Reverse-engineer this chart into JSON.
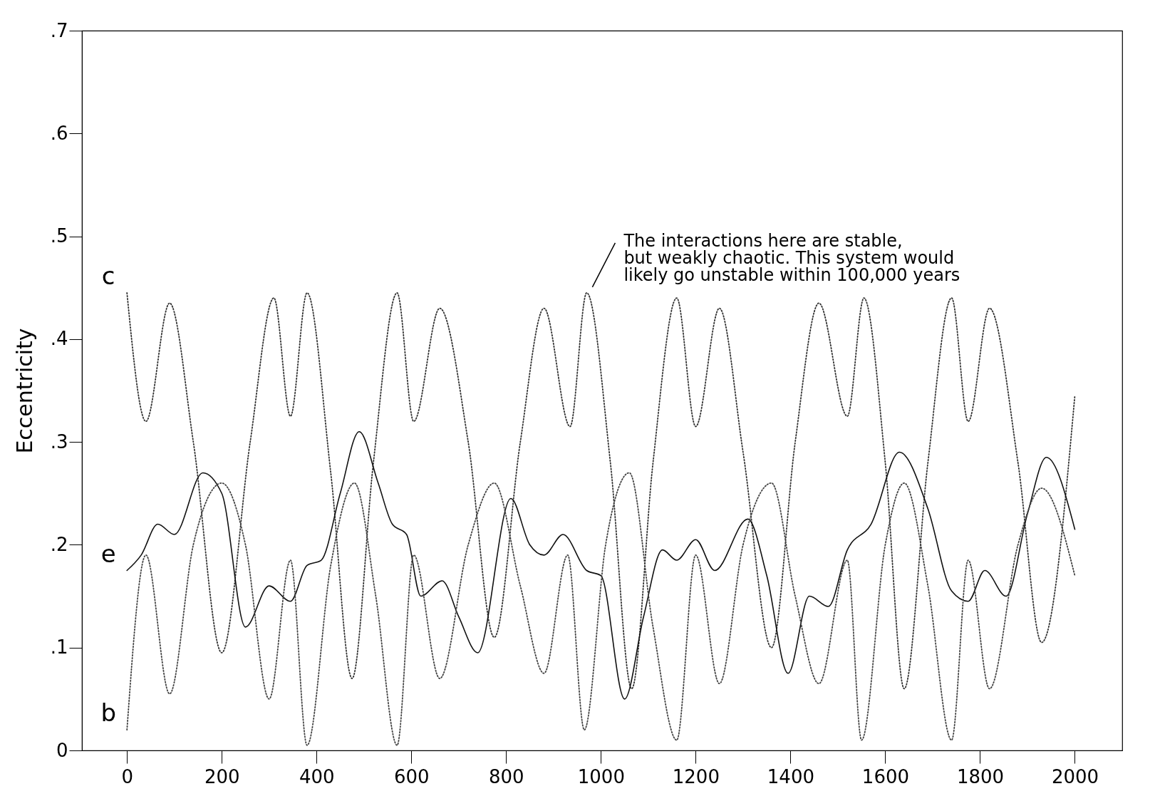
{
  "chart_data": {
    "type": "line",
    "ylabel": "Eccentricity",
    "xlim": [
      -95,
      2100
    ],
    "ylim": [
      0,
      0.7
    ],
    "xticks": [
      0,
      200,
      400,
      600,
      800,
      1000,
      1200,
      1400,
      1600,
      1800,
      2000
    ],
    "yticks": [
      0,
      {
        "value": 0.1,
        "label": ".1"
      },
      {
        "value": 0.2,
        "label": ".2"
      },
      {
        "value": 0.3,
        "label": ".3"
      },
      {
        "value": 0.4,
        "label": ".4"
      },
      {
        "value": 0.5,
        "label": ".5"
      },
      {
        "value": 0.6,
        "label": ".6"
      },
      {
        "value": 0.7,
        "label": ".7"
      }
    ],
    "grid": false,
    "marker": "none",
    "series": [
      {
        "name": "c",
        "color": "#333333",
        "line_style": "dotted",
        "x": [
          0,
          40,
          90,
          140,
          200,
          260,
          310,
          345,
          380,
          430,
          475,
          520,
          570,
          605,
          660,
          720,
          775,
          830,
          880,
          935,
          970,
          1020,
          1065,
          1110,
          1160,
          1200,
          1250,
          1300,
          1360,
          1410,
          1460,
          1520,
          1555,
          1600,
          1640,
          1690,
          1740,
          1775,
          1820,
          1880,
          1930,
          2000
        ],
        "values": [
          0.445,
          0.32,
          0.435,
          0.3,
          0.095,
          0.3,
          0.44,
          0.325,
          0.445,
          0.27,
          0.07,
          0.28,
          0.445,
          0.32,
          0.43,
          0.3,
          0.11,
          0.3,
          0.43,
          0.315,
          0.445,
          0.28,
          0.06,
          0.28,
          0.44,
          0.315,
          0.43,
          0.29,
          0.1,
          0.3,
          0.435,
          0.325,
          0.44,
          0.28,
          0.06,
          0.28,
          0.44,
          0.32,
          0.43,
          0.28,
          0.105,
          0.345
        ]
      },
      {
        "name": "e",
        "color": "#111111",
        "line_style": "solid",
        "x": [
          0,
          30,
          65,
          100,
          160,
          200,
          250,
          300,
          345,
          380,
          410,
          450,
          490,
          530,
          560,
          590,
          620,
          665,
          700,
          740,
          810,
          850,
          880,
          920,
          970,
          1000,
          1050,
          1090,
          1130,
          1160,
          1200,
          1240,
          1310,
          1350,
          1395,
          1440,
          1480,
          1520,
          1570,
          1630,
          1690,
          1740,
          1775,
          1810,
          1855,
          1900,
          1940,
          2000
        ],
        "values": [
          0.175,
          0.19,
          0.22,
          0.21,
          0.27,
          0.25,
          0.12,
          0.16,
          0.145,
          0.18,
          0.185,
          0.25,
          0.31,
          0.26,
          0.22,
          0.21,
          0.15,
          0.165,
          0.13,
          0.095,
          0.245,
          0.2,
          0.19,
          0.21,
          0.175,
          0.17,
          0.05,
          0.13,
          0.195,
          0.185,
          0.205,
          0.175,
          0.225,
          0.17,
          0.075,
          0.15,
          0.14,
          0.195,
          0.22,
          0.29,
          0.235,
          0.155,
          0.145,
          0.175,
          0.15,
          0.23,
          0.285,
          0.215
        ]
      },
      {
        "name": "b",
        "color": "#444444",
        "line_style": "dotted",
        "x": [
          0,
          40,
          90,
          140,
          200,
          250,
          300,
          345,
          380,
          430,
          480,
          525,
          570,
          605,
          660,
          720,
          775,
          830,
          880,
          930,
          965,
          1010,
          1060,
          1110,
          1160,
          1200,
          1250,
          1300,
          1360,
          1410,
          1460,
          1520,
          1550,
          1600,
          1640,
          1690,
          1740,
          1775,
          1820,
          1880,
          1930,
          2000
        ],
        "values": [
          0.02,
          0.19,
          0.055,
          0.2,
          0.26,
          0.2,
          0.05,
          0.185,
          0.005,
          0.18,
          0.26,
          0.15,
          0.005,
          0.19,
          0.07,
          0.2,
          0.26,
          0.16,
          0.075,
          0.19,
          0.02,
          0.2,
          0.27,
          0.12,
          0.01,
          0.19,
          0.065,
          0.2,
          0.26,
          0.15,
          0.065,
          0.185,
          0.01,
          0.2,
          0.26,
          0.16,
          0.01,
          0.185,
          0.06,
          0.2,
          0.255,
          0.17
        ]
      }
    ],
    "annotations": [
      {
        "text": "The interactions here are stable,\nbut weakly chaotic. This system would\nlikely go unstable within 100,000 years",
        "x": 970,
        "y": 0.445
      }
    ]
  }
}
